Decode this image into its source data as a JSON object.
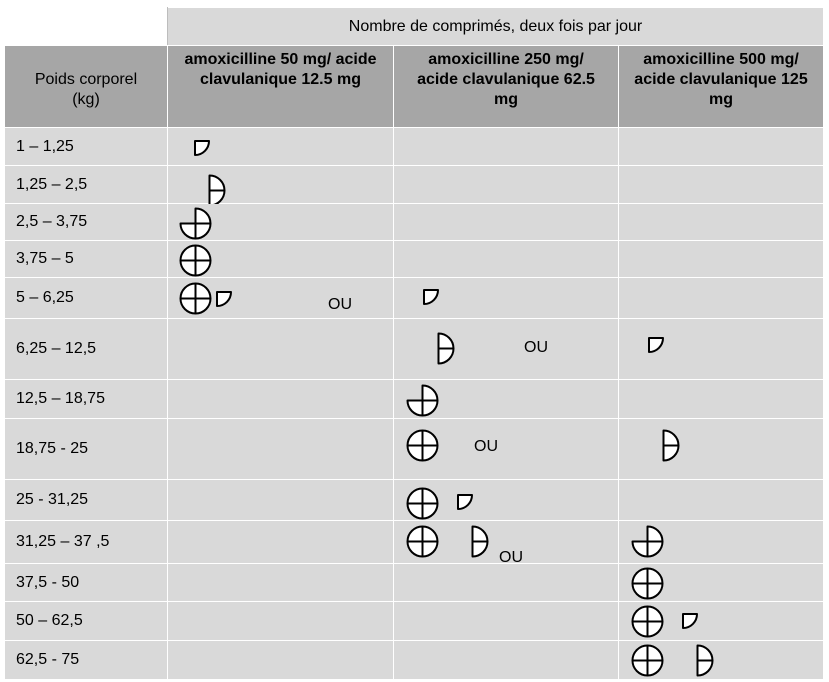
{
  "header": {
    "span_title": "Nombre de comprimés, deux fois par jour",
    "weight_col": "Poids corporel (kg)",
    "product_cols": [
      "amoxicilline 50 mg/ acide clavulanique 12.5 mg",
      "amoxicilline 250 mg/ acide clavulanique 62.5 mg",
      "amoxicilline 500 mg/ acide clavulanique 125 mg"
    ]
  },
  "or_label": "OU",
  "rows": [
    {
      "weight": "1 – 1,25",
      "doses": [
        [
          "quarter-tablet-icon"
        ],
        [],
        []
      ]
    },
    {
      "weight": "1,25 – 2,5",
      "doses": [
        [
          "half-tablet-icon"
        ],
        [],
        []
      ]
    },
    {
      "weight": "2,5 – 3,75",
      "doses": [
        [
          "three-quarter-tablet-icon"
        ],
        [],
        []
      ]
    },
    {
      "weight": "3,75 – 5",
      "doses": [
        [
          "whole-tablet-icon"
        ],
        [],
        []
      ]
    },
    {
      "weight": "5 – 6,25",
      "doses": [
        [
          "whole-tablet-icon",
          "quarter-tablet-icon"
        ],
        [
          "quarter-tablet-icon"
        ],
        []
      ],
      "or_after": 0
    },
    {
      "weight": "6,25 – 12,5",
      "doses": [
        [],
        [
          "half-tablet-icon"
        ],
        [
          "quarter-tablet-icon"
        ]
      ],
      "or_after": 1
    },
    {
      "weight": "12,5 – 18,75",
      "doses": [
        [],
        [
          "three-quarter-tablet-icon"
        ],
        []
      ]
    },
    {
      "weight": "18,75 - 25",
      "doses": [
        [],
        [
          "whole-tablet-icon"
        ],
        [
          "half-tablet-icon"
        ]
      ],
      "or_after": 1
    },
    {
      "weight": "25 - 31,25",
      "doses": [
        [],
        [
          "whole-tablet-icon",
          "quarter-tablet-icon"
        ],
        []
      ]
    },
    {
      "weight": "31,25 – 37 ,5",
      "doses": [
        [],
        [
          "whole-tablet-icon",
          "half-tablet-icon"
        ],
        [
          "three-quarter-tablet-icon"
        ]
      ],
      "or_after": 1
    },
    {
      "weight": "37,5 - 50",
      "doses": [
        [],
        [],
        [
          "whole-tablet-icon"
        ]
      ]
    },
    {
      "weight": "50 – 62,5",
      "doses": [
        [],
        [],
        [
          "whole-tablet-icon",
          "quarter-tablet-icon"
        ]
      ]
    },
    {
      "weight": "62,5 - 75",
      "doses": [
        [],
        [],
        [
          "whole-tablet-icon",
          "half-tablet-icon"
        ]
      ]
    }
  ]
}
